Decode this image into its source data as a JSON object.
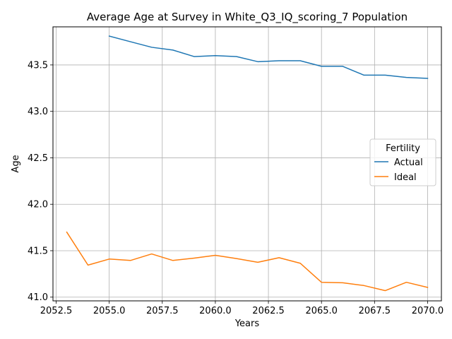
{
  "chart_data": {
    "type": "line",
    "title": "Average Age at Survey in White_Q3_IQ_scoring_7 Population",
    "xlabel": "Years",
    "ylabel": "Age",
    "xlim": [
      2052.35,
      2070.65
    ],
    "ylim": [
      40.96,
      43.91
    ],
    "x_ticks": [
      2052.5,
      2055.0,
      2057.5,
      2060.0,
      2062.5,
      2065.0,
      2067.5,
      2070.0
    ],
    "x_tick_labels": [
      "2052.5",
      "2055.0",
      "2057.5",
      "2060.0",
      "2062.5",
      "2065.0",
      "2067.5",
      "2070.0"
    ],
    "y_ticks": [
      41.0,
      41.5,
      42.0,
      42.5,
      43.0,
      43.5
    ],
    "y_tick_labels": [
      "41.0",
      "41.5",
      "42.0",
      "42.5",
      "43.0",
      "43.5"
    ],
    "grid": true,
    "legend": {
      "title": "Fertility",
      "placement": "center-right"
    },
    "series": [
      {
        "name": "Actual",
        "color": "#1f77b4",
        "x": [
          2055,
          2056,
          2057,
          2058,
          2059,
          2060,
          2061,
          2062,
          2063,
          2064,
          2065,
          2066,
          2067,
          2068,
          2069,
          2070
        ],
        "y": [
          43.81,
          43.75,
          43.69,
          43.66,
          43.59,
          43.6,
          43.59,
          43.535,
          43.545,
          43.545,
          43.485,
          43.485,
          43.39,
          43.39,
          43.365,
          43.355
        ]
      },
      {
        "name": "Ideal",
        "color": "#ff7f0e",
        "x": [
          2053,
          2054,
          2055,
          2056,
          2057,
          2058,
          2059,
          2060,
          2061,
          2062,
          2063,
          2064,
          2065,
          2066,
          2067,
          2068,
          2069,
          2070
        ],
        "y": [
          41.7,
          41.345,
          41.41,
          41.395,
          41.465,
          41.395,
          41.42,
          41.45,
          41.415,
          41.375,
          41.425,
          41.365,
          41.16,
          41.155,
          41.125,
          41.07,
          41.16,
          41.105
        ]
      }
    ]
  }
}
